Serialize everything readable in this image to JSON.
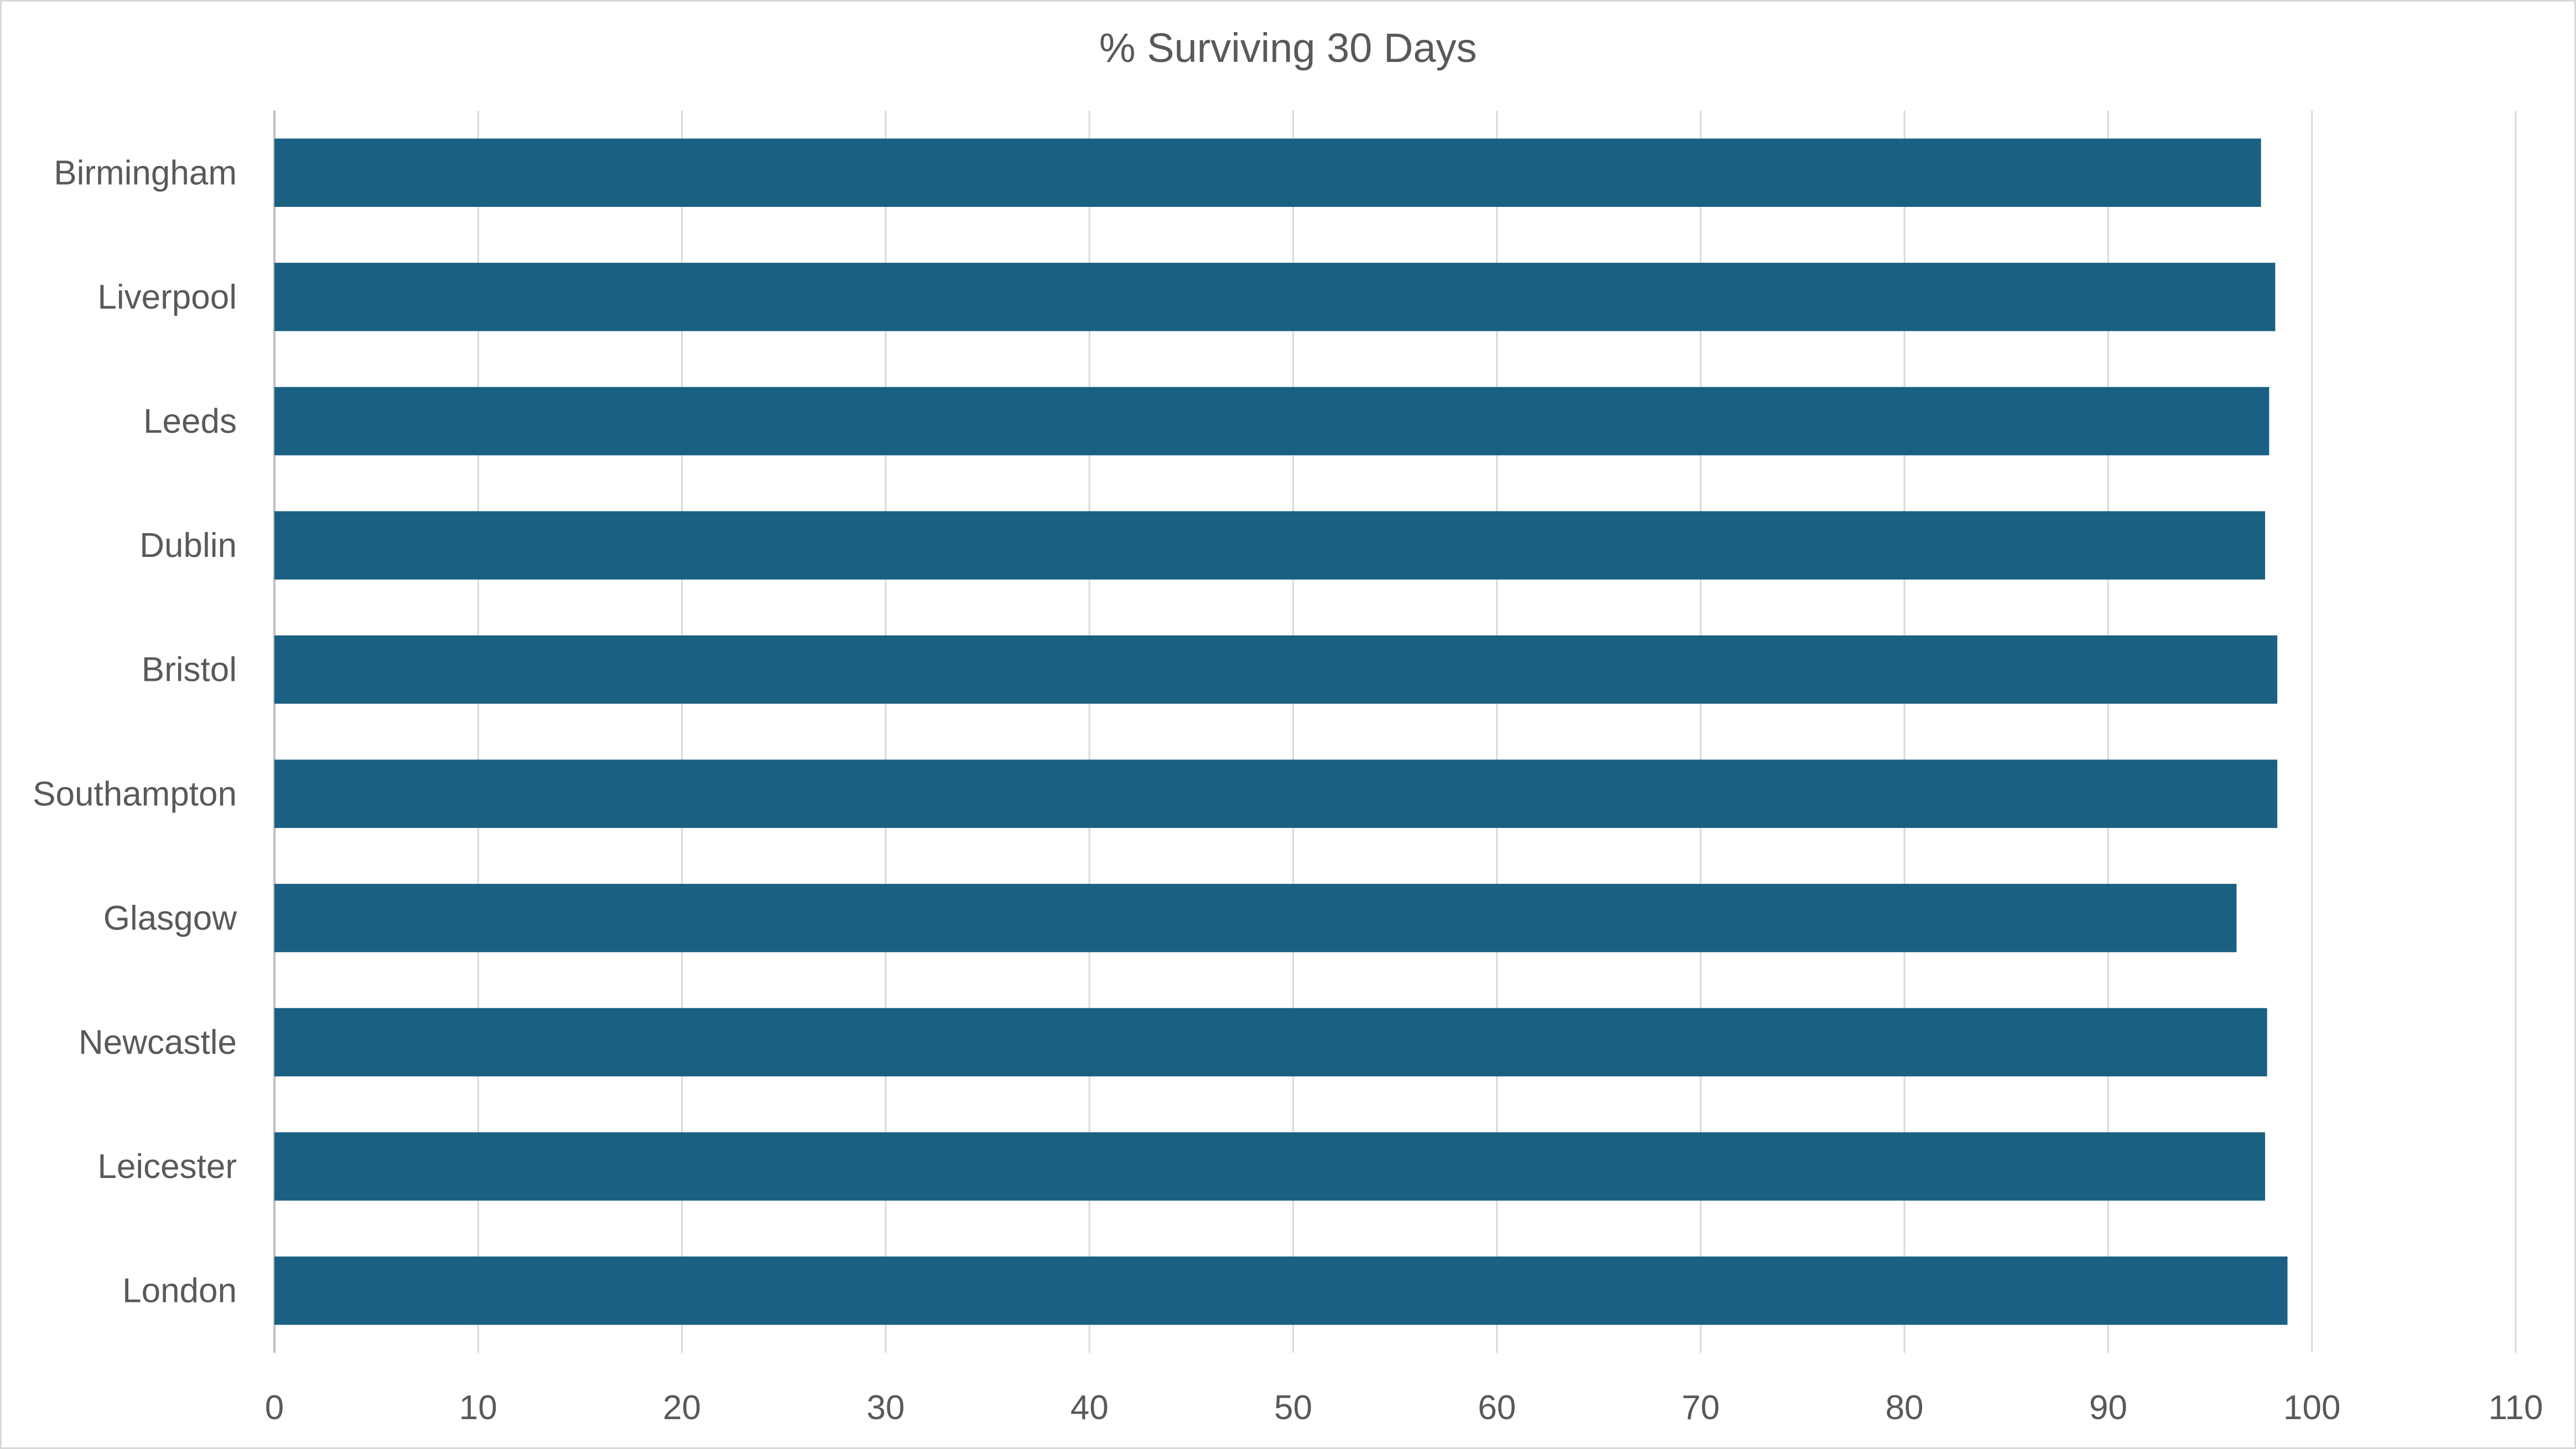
{
  "chart_data": {
    "type": "bar",
    "orientation": "horizontal",
    "title": "% Surviving 30 Days",
    "categories": [
      "Birmingham",
      "Liverpool",
      "Leeds",
      "Dublin",
      "Bristol",
      "Southampton",
      "Glasgow",
      "Newcastle",
      "Leicester",
      "London"
    ],
    "values": [
      97.5,
      98.2,
      97.9,
      97.7,
      98.3,
      98.3,
      96.3,
      97.8,
      97.7,
      98.8
    ],
    "xticks": [
      "0",
      "10",
      "20",
      "30",
      "40",
      "50",
      "60",
      "70",
      "80",
      "90",
      "100",
      "110"
    ],
    "xlim": [
      0,
      110
    ],
    "xlabel": "",
    "ylabel": "",
    "grid": "vertical",
    "legend": "none",
    "bar_color": "#1a6082"
  }
}
